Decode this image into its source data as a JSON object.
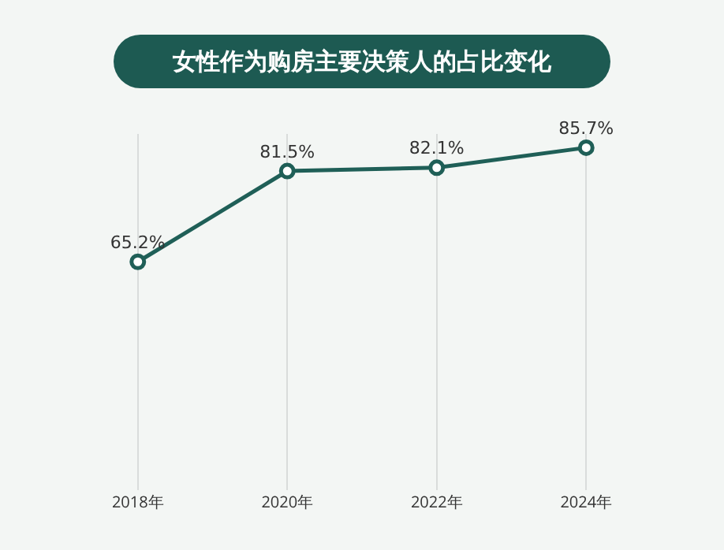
{
  "chart_data": {
    "type": "line",
    "title": "女性作为购房主要决策人的占比变化",
    "categories": [
      "2018年",
      "2020年",
      "2022年",
      "2024年"
    ],
    "series": [
      {
        "color": "#1f5f57",
        "values": [
          65.2,
          81.5,
          82.1,
          85.7
        ],
        "value_labels": [
          "65.2%",
          "81.5%",
          "82.1%",
          "85.7%"
        ]
      }
    ],
    "grid": "x",
    "marker": "circle",
    "line_style": "solid"
  }
}
